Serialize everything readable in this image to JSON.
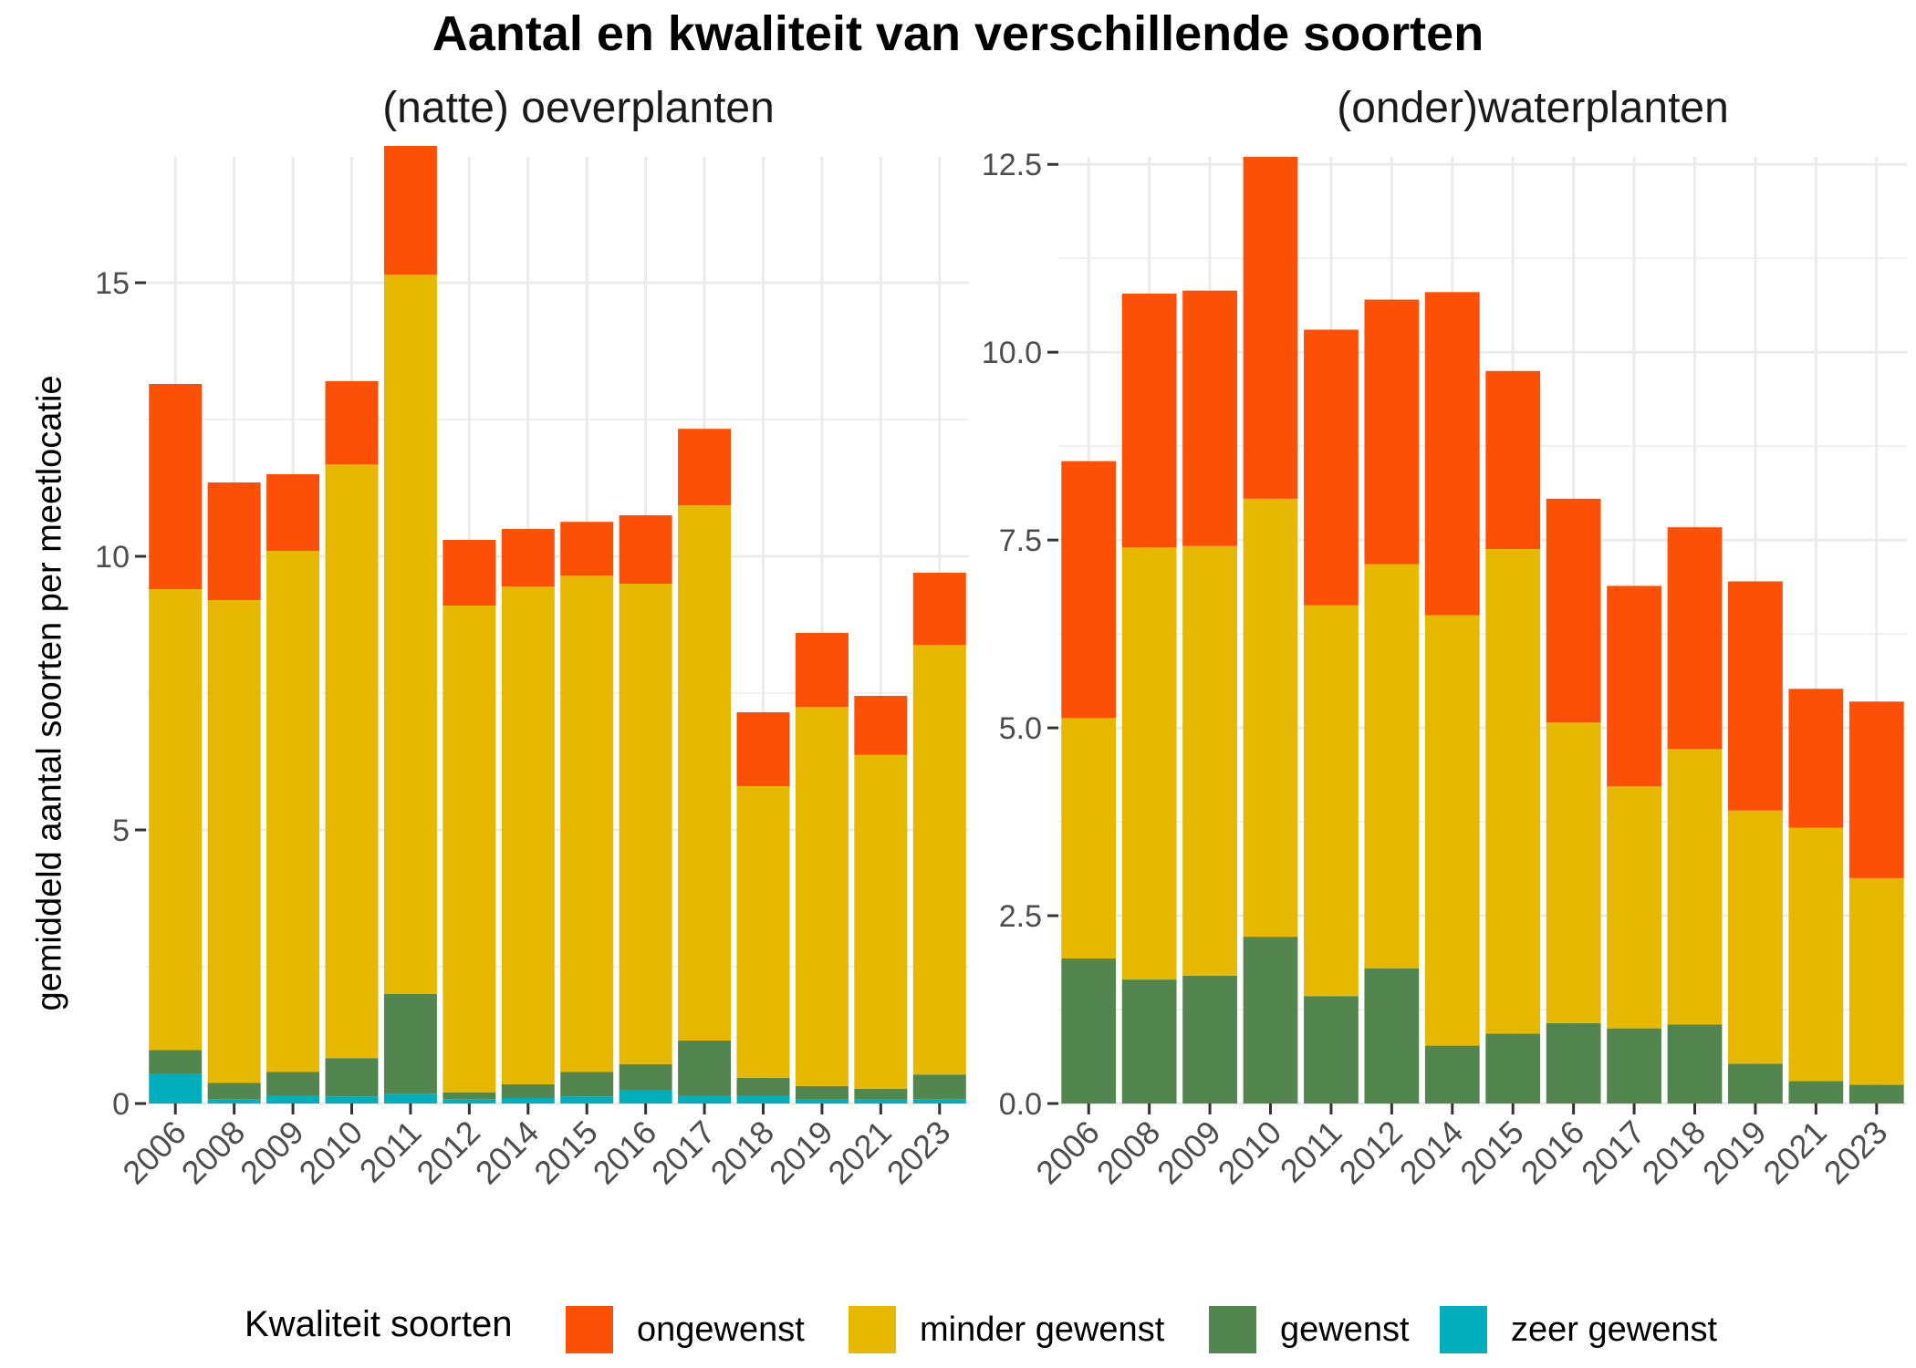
{
  "title": "Aantal en kwaliteit van verschillende soorten",
  "y_axis_title": "gemiddeld aantal soorten per meetlocatie",
  "legend": {
    "title": "Kwaliteit soorten",
    "items": [
      {
        "label": "ongewenst",
        "color": "#FC5007"
      },
      {
        "label": "minder gewenst",
        "color": "#E6B800"
      },
      {
        "label": "gewenst",
        "color": "#53864E"
      },
      {
        "label": "zeer gewenst",
        "color": "#00AFBB"
      }
    ]
  },
  "chart_data": [
    {
      "type": "bar",
      "stacked": true,
      "title": "(natte) oeverplanten",
      "categories": [
        "2006",
        "2008",
        "2009",
        "2010",
        "2011",
        "2012",
        "2014",
        "2015",
        "2016",
        "2017",
        "2018",
        "2019",
        "2021",
        "2023"
      ],
      "ylim": [
        0,
        17.3
      ],
      "y_ticks": [
        0,
        5,
        10,
        15
      ],
      "y_tick_labels": [
        "0",
        "5",
        "10",
        "15"
      ],
      "grid": true,
      "series": [
        {
          "name": "zeer gewenst",
          "color": "#00AFBB",
          "values": [
            0.55,
            0.08,
            0.15,
            0.13,
            0.18,
            0.08,
            0.1,
            0.13,
            0.25,
            0.15,
            0.15,
            0.07,
            0.07,
            0.08
          ]
        },
        {
          "name": "gewenst",
          "color": "#53864E",
          "values": [
            0.43,
            0.3,
            0.43,
            0.7,
            1.82,
            0.12,
            0.25,
            0.45,
            0.47,
            1.0,
            0.32,
            0.25,
            0.2,
            0.45
          ]
        },
        {
          "name": "minder gewenst",
          "color": "#E6B800",
          "values": [
            8.42,
            8.82,
            9.52,
            10.85,
            13.15,
            8.9,
            9.1,
            9.07,
            8.78,
            9.78,
            5.33,
            6.93,
            6.1,
            7.85
          ]
        },
        {
          "name": "ongewenst",
          "color": "#FC5007",
          "values": [
            3.75,
            2.15,
            1.4,
            1.52,
            2.35,
            1.2,
            1.05,
            0.98,
            1.25,
            1.4,
            1.35,
            1.35,
            1.08,
            1.32
          ]
        }
      ]
    },
    {
      "type": "bar",
      "stacked": true,
      "title": "(onder)waterplanten",
      "categories": [
        "2006",
        "2008",
        "2009",
        "2010",
        "2011",
        "2012",
        "2014",
        "2015",
        "2016",
        "2017",
        "2018",
        "2019",
        "2021",
        "2023"
      ],
      "ylim": [
        0,
        12.6
      ],
      "y_ticks": [
        0,
        2.5,
        5,
        7.5,
        10,
        12.5
      ],
      "y_tick_labels": [
        "0.0",
        "2.5",
        "5.0",
        "7.5",
        "10.0",
        "12.5"
      ],
      "grid": true,
      "series": [
        {
          "name": "zeer gewenst",
          "color": "#00AFBB",
          "values": [
            0,
            0,
            0,
            0,
            0,
            0,
            0,
            0,
            0,
            0,
            0,
            0,
            0,
            0
          ]
        },
        {
          "name": "gewenst",
          "color": "#53864E",
          "values": [
            1.93,
            1.65,
            1.7,
            2.22,
            1.43,
            1.8,
            0.77,
            0.93,
            1.07,
            1.0,
            1.05,
            0.53,
            0.3,
            0.25
          ]
        },
        {
          "name": "minder gewenst",
          "color": "#E6B800",
          "values": [
            3.2,
            5.75,
            5.72,
            5.83,
            5.2,
            5.38,
            5.73,
            6.45,
            4.0,
            3.22,
            3.67,
            3.37,
            3.37,
            2.75
          ]
        },
        {
          "name": "ongewenst",
          "color": "#FC5007",
          "values": [
            3.42,
            3.38,
            3.4,
            4.55,
            3.67,
            3.52,
            4.3,
            2.37,
            2.98,
            2.67,
            2.95,
            3.05,
            1.85,
            2.35
          ]
        }
      ]
    }
  ]
}
